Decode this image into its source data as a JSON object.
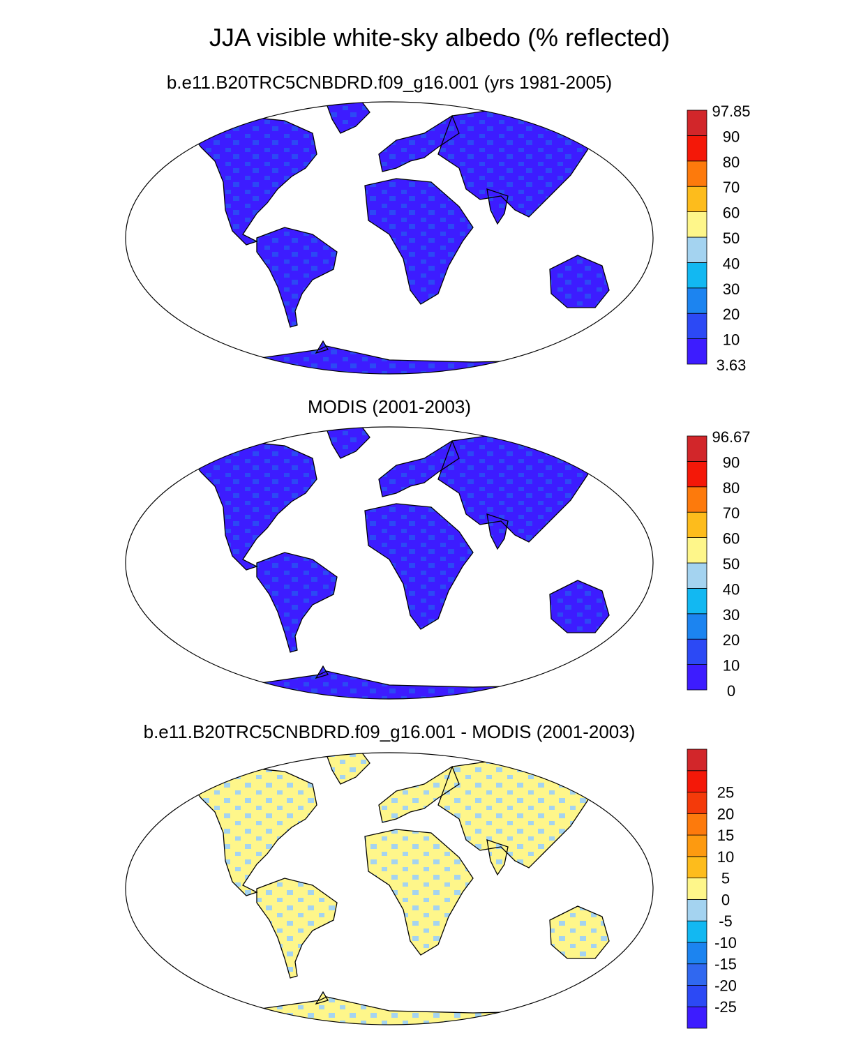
{
  "title": "JJA visible white-sky albedo (% reflected)",
  "panels": [
    {
      "id": "model",
      "subtitle": "b.e11.B20TRC5CNBDRD.f09_g16.001 (yrs 1981-2005)",
      "colorbar": {
        "colors": [
          "#3d1cff",
          "#2c49f5",
          "#1c84f0",
          "#12b8f2",
          "#a4d3f0",
          "#fef68a",
          "#fdbc1c",
          "#fd7a0c",
          "#f41808",
          "#d2262a"
        ],
        "labels": [
          "3.63",
          "10",
          "20",
          "30",
          "40",
          "50",
          "60",
          "70",
          "80",
          "90",
          "97.85"
        ]
      }
    },
    {
      "id": "obs",
      "subtitle": "MODIS (2001-2003)",
      "colorbar": {
        "colors": [
          "#3d1cff",
          "#2c49f5",
          "#1c84f0",
          "#12b8f2",
          "#a4d3f0",
          "#fef68a",
          "#fdbc1c",
          "#fd7a0c",
          "#f41808",
          "#d2262a"
        ],
        "labels": [
          "0",
          "10",
          "20",
          "30",
          "40",
          "50",
          "60",
          "70",
          "80",
          "90",
          "96.67"
        ]
      }
    },
    {
      "id": "diff",
      "subtitle": "b.e11.B20TRC5CNBDRD.f09_g16.001 - MODIS (2001-2003)",
      "colorbar": {
        "colors": [
          "#3d1cff",
          "#2c49f5",
          "#3068f0",
          "#1c84f0",
          "#12b8f2",
          "#a4d3f0",
          "#fef68a",
          "#fdbc1c",
          "#fd9a10",
          "#fd7a0c",
          "#f43a0a",
          "#f41808",
          "#d2262a"
        ],
        "labels": [
          "",
          "-25",
          "-20",
          "-15",
          "-10",
          "-5",
          "0",
          "5",
          "10",
          "15",
          "20",
          "25",
          ""
        ]
      }
    }
  ]
}
